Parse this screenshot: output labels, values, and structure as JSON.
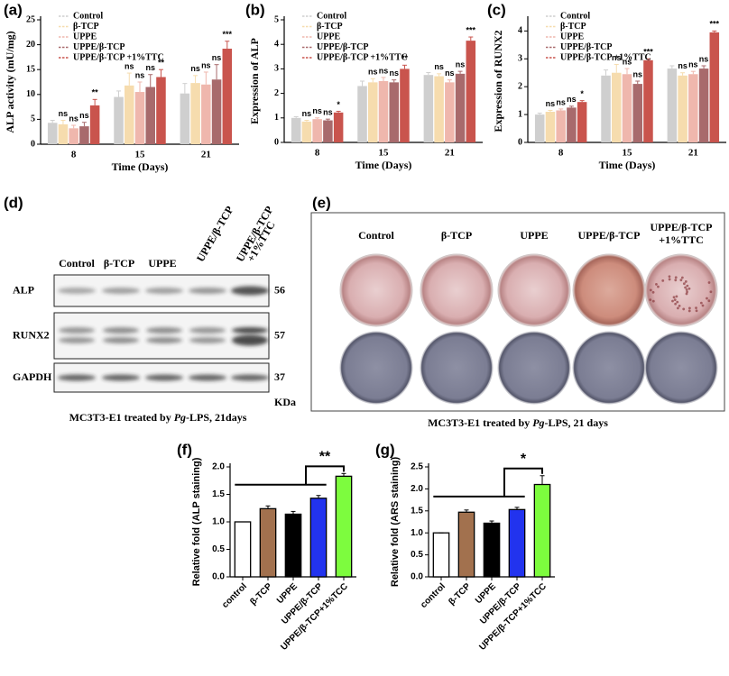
{
  "chart_data": [
    {
      "type": "bar",
      "panel": "(a)",
      "xlabel": "Time (Days)",
      "ylabel": "ALP activity (mU/mg)",
      "categories": [
        "8",
        "15",
        "21"
      ],
      "ylim": [
        0,
        25
      ],
      "yticks": [
        0,
        5,
        10,
        15,
        20,
        25
      ],
      "legend": "upper left",
      "series": [
        {
          "name": "Control",
          "color": "#cfcfcf",
          "values": [
            4.3,
            9.5,
            10.2
          ],
          "errors": [
            0.5,
            1.2,
            2.0
          ],
          "significance": [
            null,
            null,
            null
          ]
        },
        {
          "name": "β-TCP",
          "color": "#f6dcae",
          "values": [
            4.0,
            11.8,
            12.3
          ],
          "errors": [
            0.8,
            2.5,
            1.5
          ],
          "significance": [
            "ns",
            "ns",
            "ns"
          ]
        },
        {
          "name": "UPPE",
          "color": "#efb7ad",
          "values": [
            3.2,
            10.5,
            12.0
          ],
          "errors": [
            0.6,
            2.0,
            2.5
          ],
          "significance": [
            "ns",
            "ns",
            "ns"
          ]
        },
        {
          "name": "UPPE/β-TCP",
          "color": "#a86a6c",
          "values": [
            3.6,
            11.5,
            13.0
          ],
          "errors": [
            0.8,
            2.5,
            3.0
          ],
          "significance": [
            "ns",
            "ns",
            "ns"
          ]
        },
        {
          "name": "UPPE/β-TCP +1%TTC",
          "color": "#c9544d",
          "values": [
            7.8,
            13.5,
            19.2
          ],
          "errors": [
            1.2,
            1.5,
            1.5
          ],
          "significance": [
            "**",
            "**",
            "***"
          ]
        }
      ]
    },
    {
      "type": "bar",
      "panel": "(b)",
      "xlabel": "Time (Days)",
      "ylabel": "Expression of ALP",
      "categories": [
        "8",
        "15",
        "21"
      ],
      "ylim": [
        0,
        5
      ],
      "yticks": [
        0,
        1,
        2,
        3,
        4,
        5
      ],
      "legend": "upper left",
      "series": [
        {
          "name": "Control",
          "color": "#cfcfcf",
          "values": [
            1.0,
            2.3,
            2.75
          ],
          "errors": [
            0.05,
            0.2,
            0.1
          ],
          "significance": [
            null,
            null,
            null
          ]
        },
        {
          "name": "β-TCP",
          "color": "#f6dcae",
          "values": [
            0.85,
            2.45,
            2.7
          ],
          "errors": [
            0.05,
            0.15,
            0.1
          ],
          "significance": [
            "ns",
            "ns",
            "ns"
          ]
        },
        {
          "name": "UPPE",
          "color": "#efb7ad",
          "values": [
            0.95,
            2.5,
            2.45
          ],
          "errors": [
            0.05,
            0.15,
            0.1
          ],
          "significance": [
            "ns",
            "ns",
            "ns"
          ]
        },
        {
          "name": "UPPE/β-TCP",
          "color": "#a86a6c",
          "values": [
            0.9,
            2.45,
            2.8
          ],
          "errors": [
            0.05,
            0.1,
            0.1
          ],
          "significance": [
            "ns",
            "ns",
            "ns"
          ]
        },
        {
          "name": "UPPE/β-TCP +1%TTC",
          "color": "#c9544d",
          "values": [
            1.22,
            3.0,
            4.15
          ],
          "errors": [
            0.05,
            0.15,
            0.15
          ],
          "significance": [
            "*",
            "**",
            "***"
          ]
        }
      ]
    },
    {
      "type": "bar",
      "panel": "(c)",
      "xlabel": "Time (Days)",
      "ylabel": "Expression of RUNX2",
      "categories": [
        "8",
        "15",
        "21"
      ],
      "ylim": [
        0,
        4.4
      ],
      "yticks": [
        0,
        1,
        2,
        3,
        4
      ],
      "legend": "upper left",
      "series": [
        {
          "name": "Control",
          "color": "#cfcfcf",
          "values": [
            1.0,
            2.4,
            2.65
          ],
          "errors": [
            0.05,
            0.2,
            0.1
          ],
          "significance": [
            null,
            null,
            null
          ]
        },
        {
          "name": "β-TCP",
          "color": "#f6dcae",
          "values": [
            1.1,
            2.5,
            2.4
          ],
          "errors": [
            0.05,
            0.3,
            0.1
          ],
          "significance": [
            "ns",
            "ns",
            "ns"
          ]
        },
        {
          "name": "UPPE",
          "color": "#efb7ad",
          "values": [
            1.15,
            2.45,
            2.45
          ],
          "errors": [
            0.05,
            0.2,
            0.1
          ],
          "significance": [
            "ns",
            "ns",
            "ns"
          ]
        },
        {
          "name": "UPPE/β-TCP",
          "color": "#a86a6c",
          "values": [
            1.25,
            2.1,
            2.65
          ],
          "errors": [
            0.05,
            0.1,
            0.1
          ],
          "significance": [
            "ns",
            "ns",
            "ns"
          ]
        },
        {
          "name": "UPPE/β-TCP +1%TTC",
          "color": "#c9544d",
          "values": [
            1.45,
            2.95,
            3.95
          ],
          "errors": [
            0.05,
            0.05,
            0.05
          ],
          "significance": [
            "*",
            "***",
            "***"
          ]
        }
      ]
    },
    {
      "type": "bar",
      "panel": "(f)",
      "ylabel": "Relative fold (ALP staining)",
      "categories": [
        "control",
        "β-TCP",
        "UPPE",
        "UPPE/β-TCP",
        "UPPE/β-TCP+1%TCC"
      ],
      "values": [
        1.0,
        1.24,
        1.14,
        1.43,
        1.83
      ],
      "errors": [
        0,
        0.05,
        0.05,
        0.05,
        0.05
      ],
      "colors": [
        "#ffffff",
        "#a2714e",
        "#000000",
        "#2233ee",
        "#7dfc3e"
      ],
      "significance": "**",
      "ylim": [
        0,
        2.0
      ],
      "yticks": [
        {
          "value": 0,
          "label": "0.0"
        },
        {
          "value": 0.5,
          "label": "0.5"
        },
        {
          "value": 1,
          "label": "1.0"
        },
        {
          "value": 1.5,
          "label": "1.5"
        },
        {
          "value": 2,
          "label": "2.0"
        }
      ]
    },
    {
      "type": "bar",
      "panel": "(g)",
      "ylabel": "Relative fold (ARS staining)",
      "categories": [
        "control",
        "β-TCP",
        "UPPE",
        "UPPE/β-TCP",
        "UPPE/β-TCP+1%TCC"
      ],
      "values": [
        1.0,
        1.47,
        1.22,
        1.53,
        2.1
      ],
      "errors": [
        0,
        0.05,
        0.05,
        0.05,
        0.2
      ],
      "colors": [
        "#ffffff",
        "#a2714e",
        "#000000",
        "#2233ee",
        "#7dfc3e"
      ],
      "significance": "*",
      "ylim": [
        0,
        2.5
      ],
      "yticks": [
        {
          "value": 0,
          "label": "0.0"
        },
        {
          "value": 0.5,
          "label": "0.5"
        },
        {
          "value": 1,
          "label": "1.0"
        },
        {
          "value": 1.5,
          "label": "1.5"
        },
        {
          "value": 2,
          "label": "2.0"
        },
        {
          "value": 2.5,
          "label": "2.5"
        }
      ]
    }
  ],
  "blot": {
    "panel": "(d)",
    "columns": [
      "Control",
      "β-TCP",
      "UPPE",
      "UPPE/β-TCP",
      [
        "UPPE/β-TCP",
        "+1%TTC"
      ]
    ],
    "rows": [
      {
        "label": "ALP",
        "size": 56
      },
      {
        "label": "RUNX2",
        "size": 57
      },
      {
        "label": "GAPDH",
        "size": 37
      }
    ],
    "unit": "KDa",
    "caption": [
      "MC3T3-E1 treated by ",
      "Pg",
      "-LPS, 21days"
    ]
  },
  "plates": {
    "panel": "(e)",
    "columns": [
      "Control",
      "β-TCP",
      "UPPE",
      "UPPE/β-TCP",
      [
        "UPPE/β-TCP",
        "+1%TTC"
      ]
    ],
    "caption": [
      "MC3T3-E1 treated by ",
      "Pg",
      "-LPS, 21 days"
    ]
  }
}
